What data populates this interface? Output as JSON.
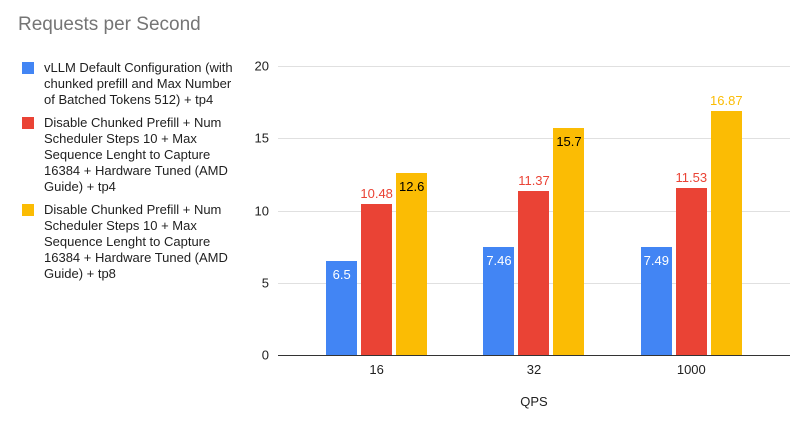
{
  "chart_data": {
    "type": "bar",
    "title": "Requests per Second",
    "xlabel": "QPS",
    "ylabel": "",
    "categories": [
      "16",
      "32",
      "1000"
    ],
    "yticks": [
      "0",
      "5",
      "10",
      "15",
      "20"
    ],
    "ylim": [
      0,
      20
    ],
    "grid": true,
    "legend_position": "left",
    "series": [
      {
        "name": "vLLM Default Configuration (with chunked prefill and Max Number of Batched Tokens 512) + tp4",
        "color": "#4285F4",
        "values": [
          6.5,
          7.46,
          7.49
        ],
        "data_labels": [
          {
            "text": "6.5",
            "placement": "inside",
            "color": "#FFFFFF"
          },
          {
            "text": "7.46",
            "placement": "inside",
            "color": "#FFFFFF"
          },
          {
            "text": "7.49",
            "placement": "inside",
            "color": "#FFFFFF"
          }
        ]
      },
      {
        "name": "Disable Chunked Prefill + Num Scheduler Steps 10 + Max Sequence Lenght to Capture 16384 + Hardware Tuned (AMD Guide) + tp4",
        "color": "#EA4335",
        "values": [
          10.48,
          11.37,
          11.53
        ],
        "data_labels": [
          {
            "text": "10.48",
            "placement": "above",
            "color": "#EA4335"
          },
          {
            "text": "11.37",
            "placement": "above",
            "color": "#EA4335"
          },
          {
            "text": "11.53",
            "placement": "above",
            "color": "#EA4335"
          }
        ]
      },
      {
        "name": "Disable Chunked Prefill + Num Scheduler Steps 10 + Max Sequence Lenght to Capture 16384 + Hardware Tuned (AMD Guide) + tp8",
        "color": "#FBBC04",
        "values": [
          12.6,
          15.7,
          16.87
        ],
        "data_labels": [
          {
            "text": "12.6",
            "placement": "inside",
            "color": "#000000"
          },
          {
            "text": "15.7",
            "placement": "inside",
            "color": "#000000"
          },
          {
            "text": "16.87",
            "placement": "above",
            "color": "#FBBC04"
          }
        ]
      }
    ]
  },
  "colors": {
    "title_text": "#757575",
    "axis_text": "#212121",
    "gridline": "#e0e0e0",
    "baseline": "#333333",
    "background": "#ffffff"
  }
}
